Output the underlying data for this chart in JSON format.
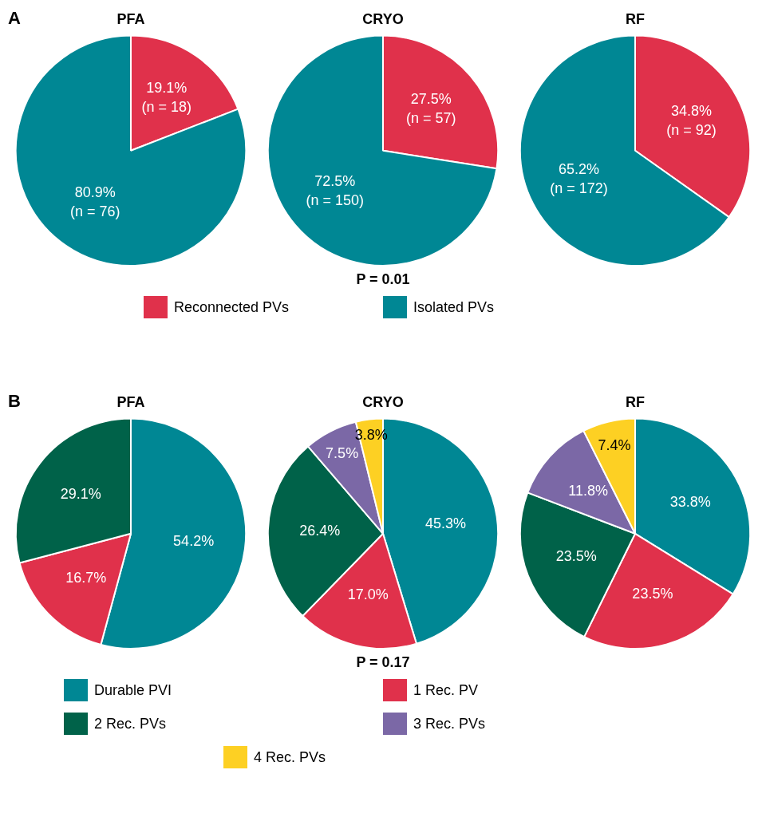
{
  "chart_data": [
    {
      "type": "pie",
      "title": "PFA",
      "annotations": [
        "A"
      ],
      "categories": [
        null,
        null
      ],
      "values": [
        19.1,
        80.9
      ],
      "colors": [
        "#e0314b",
        "#008794"
      ],
      "value_labels": [
        "19.1%\n(n = 18)",
        "80.9%\n(n = 76)"
      ]
    },
    {
      "type": "pie",
      "title": "CRYO",
      "annotations": [
        "P = 0.01"
      ],
      "legend": "bottom",
      "categories": [
        "Reconnected PVs",
        "Isolated PVs"
      ],
      "values": [
        27.5,
        72.5
      ],
      "colors": [
        "#e0314b",
        "#008794"
      ],
      "value_labels": [
        "27.5%\n(n = 57)",
        "72.5%\n(n = 150)"
      ]
    },
    {
      "type": "pie",
      "title": "RF",
      "categories": [
        null,
        null
      ],
      "values": [
        34.8,
        65.2
      ],
      "colors": [
        "#e0314b",
        "#008794"
      ],
      "value_labels": [
        "34.8%\n(n = 92)",
        "65.2%\n(n = 172)"
      ]
    },
    {
      "type": "pie",
      "title": "PFA",
      "annotations": [
        "B"
      ],
      "categories": [
        null,
        null,
        null,
        null,
        null
      ],
      "values": [
        54.2,
        16.7,
        29.1,
        0,
        0
      ],
      "colors": [
        "#008794",
        "#e0314b",
        "#006249",
        "#7b68a6",
        "#fdd023"
      ],
      "value_labels": [
        "54.2%",
        "16.7%",
        "29.1%",
        null,
        null
      ]
    },
    {
      "type": "pie",
      "title": "CRYO",
      "annotations": [
        "P = 0.17"
      ],
      "legend": "bottom",
      "categories": [
        "Durable PVI",
        "1 Rec. PV",
        "2 Rec. PVs",
        "3 Rec. PVs",
        "4 Rec. PVs"
      ],
      "values": [
        45.3,
        17.0,
        26.4,
        7.5,
        3.8
      ],
      "colors": [
        "#008794",
        "#e0314b",
        "#006249",
        "#7b68a6",
        "#fdd023"
      ],
      "value_labels": [
        "45.3%",
        "17.0%",
        "26.4%",
        "7.5%",
        "3.8%"
      ]
    },
    {
      "type": "pie",
      "title": "RF",
      "categories": [
        null,
        null,
        null,
        null,
        null
      ],
      "values": [
        33.8,
        23.5,
        23.5,
        11.8,
        7.4
      ],
      "colors": [
        "#008794",
        "#e0314b",
        "#006249",
        "#7b68a6",
        "#fdd023"
      ],
      "value_labels": [
        "33.8%",
        "23.5%",
        "23.5%",
        "11.8%",
        "7.4%"
      ]
    }
  ]
}
